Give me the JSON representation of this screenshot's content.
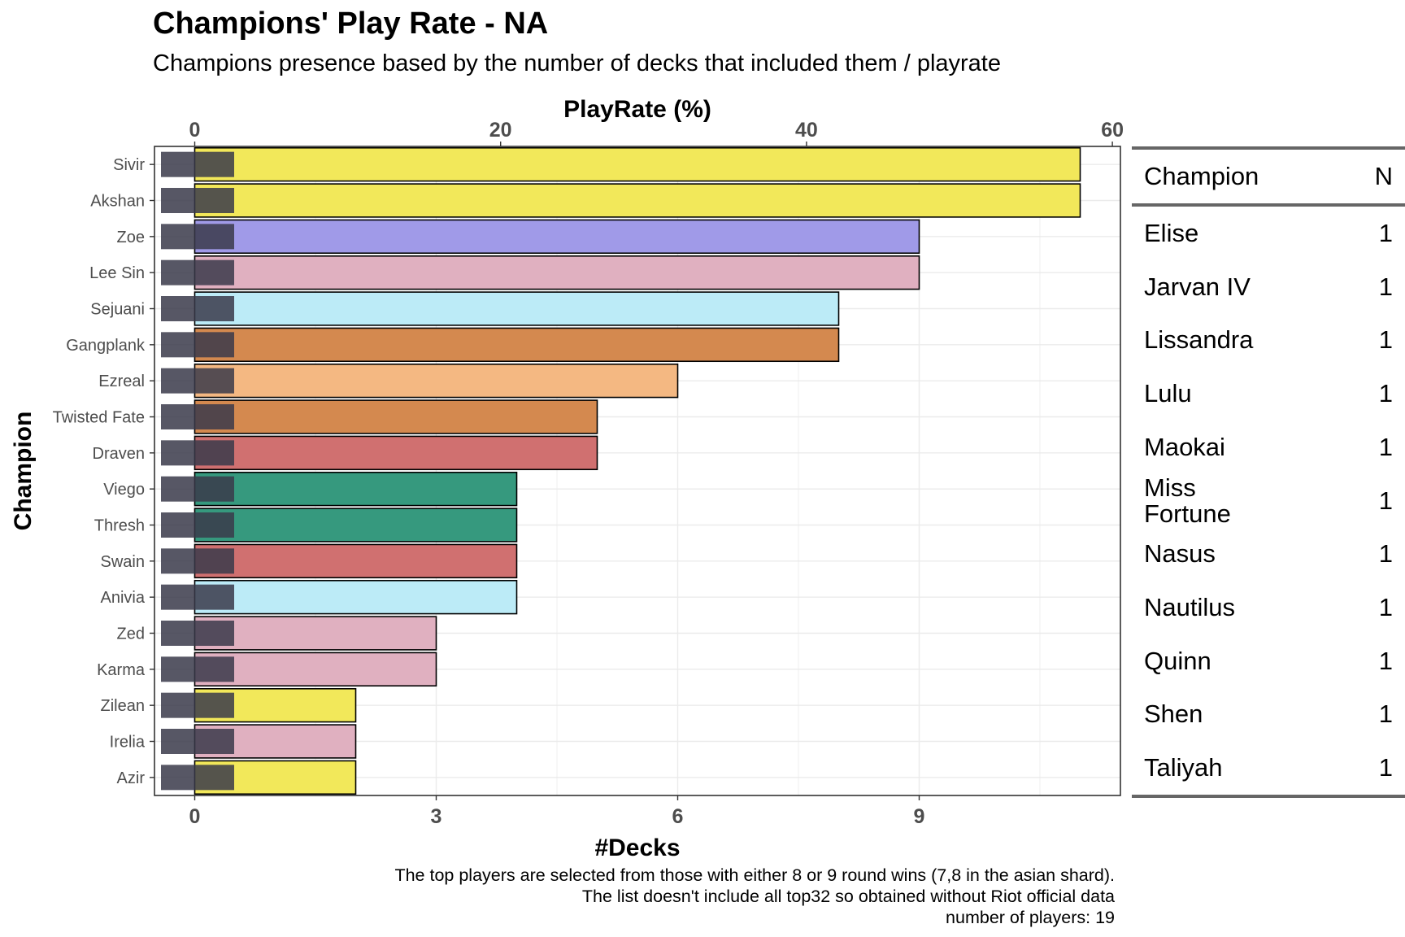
{
  "title": "Champions' Play Rate - NA",
  "subtitle": "Champions presence based by the number of decks that included them / playrate",
  "caption": [
    "The top players are selected from those with either 8 or 9 round wins (7,8 in the asian shard).",
    "The list doesn't include all top32 so obtained without Riot official data",
    "number of players: 19"
  ],
  "chart_data": {
    "type": "bar",
    "orientation": "horizontal",
    "xlabel": "#Decks",
    "ylabel": "Champion",
    "x2label": "PlayRate (%)",
    "x_ticks": [
      0,
      3,
      6,
      9
    ],
    "x2_ticks": [
      0,
      20,
      40,
      60
    ],
    "xlim": [
      -0.5,
      11.5
    ],
    "grid": true,
    "categories": [
      "Sivir",
      "Akshan",
      "Zoe",
      "Lee Sin",
      "Sejuani",
      "Gangplank",
      "Ezreal",
      "Twisted Fate",
      "Draven",
      "Viego",
      "Thresh",
      "Swain",
      "Anivia",
      "Zed",
      "Karma",
      "Zilean",
      "Irelia",
      "Azir"
    ],
    "values": [
      11,
      11,
      9,
      9,
      8,
      8,
      6,
      5,
      5,
      4,
      4,
      4,
      4,
      3,
      3,
      2,
      2,
      2
    ],
    "colors": [
      "#f2e85a",
      "#f2e85a",
      "#a09ae8",
      "#e0b0c0",
      "#bcebf7",
      "#d4894f",
      "#f4b882",
      "#d4894f",
      "#d07070",
      "#36997e",
      "#36997e",
      "#d07070",
      "#bcebf7",
      "#e0b0c0",
      "#e0b0c0",
      "#f2e85a",
      "#e0b0c0",
      "#f2e85a"
    ]
  },
  "side_table": {
    "headers": [
      "Champion",
      "N"
    ],
    "rows": [
      {
        "name": "Elise",
        "n": "1"
      },
      {
        "name": "Jarvan IV",
        "n": "1"
      },
      {
        "name": "Lissandra",
        "n": "1"
      },
      {
        "name": "Lulu",
        "n": "1"
      },
      {
        "name": "Maokai",
        "n": "1"
      },
      {
        "name": "Miss Fortune",
        "n": "1"
      },
      {
        "name": "Nasus",
        "n": "1"
      },
      {
        "name": "Nautilus",
        "n": "1"
      },
      {
        "name": "Quinn",
        "n": "1"
      },
      {
        "name": "Shen",
        "n": "1"
      },
      {
        "name": "Taliyah",
        "n": "1"
      }
    ]
  }
}
